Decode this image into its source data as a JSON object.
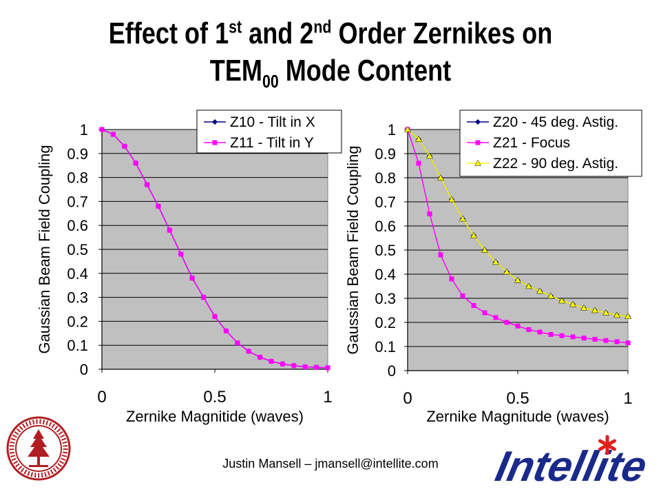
{
  "title": {
    "part1": "Effect of 1",
    "sup1": "st",
    "part2": " and 2",
    "sup2": "nd",
    "part3": " Order Zernikes on",
    "line2a": "TEM",
    "sub2": "00",
    "line2b": " Mode Content"
  },
  "footer": {
    "text": "Justin Mansell – jmansell@intellite.com"
  },
  "logo": {
    "text": "Intellite"
  },
  "colors": {
    "plot_bg": "#c0c0c0",
    "navy": "#000080",
    "magenta": "#ff00ff",
    "yellow": "#ffff00",
    "logo_blue": "#1a2a8a",
    "logo_red": "#e0201a",
    "seal_red": "#b01e23"
  },
  "chart_data": [
    {
      "type": "line",
      "xlabel": "Zernike Magnitide (waves)",
      "ylabel": "Gaussian Beam Field Coupling",
      "xlim": [
        0,
        1
      ],
      "ylim": [
        0,
        1
      ],
      "xticks": [
        "0",
        "0.5",
        "1"
      ],
      "yticks": [
        "0",
        "0.1",
        "0.2",
        "0.3",
        "0.4",
        "0.5",
        "0.6",
        "0.7",
        "0.8",
        "0.9",
        "1"
      ],
      "grid": "horizontal",
      "legend": "top-right",
      "x": [
        0,
        0.05,
        0.1,
        0.15,
        0.2,
        0.25,
        0.3,
        0.35,
        0.4,
        0.45,
        0.5,
        0.55,
        0.6,
        0.65,
        0.7,
        0.75,
        0.8,
        0.85,
        0.9,
        0.95,
        1
      ],
      "series": [
        {
          "name": "Z10 - Tilt in X",
          "marker": "diamond",
          "color": "#000080",
          "values": [
            1,
            0.98,
            0.93,
            0.86,
            0.77,
            0.68,
            0.58,
            0.48,
            0.38,
            0.3,
            0.22,
            0.16,
            0.11,
            0.075,
            0.05,
            0.033,
            0.022,
            0.015,
            0.01,
            0.008,
            0.006
          ]
        },
        {
          "name": "Z11 - Tilt in Y",
          "marker": "square",
          "color": "#ff00ff",
          "values": [
            1,
            0.98,
            0.93,
            0.86,
            0.77,
            0.68,
            0.58,
            0.48,
            0.38,
            0.3,
            0.22,
            0.16,
            0.11,
            0.075,
            0.05,
            0.033,
            0.022,
            0.015,
            0.01,
            0.008,
            0.006
          ]
        }
      ]
    },
    {
      "type": "line",
      "xlabel": "Zernike Magnitude (waves)",
      "ylabel": "Gaussian Beam Field Coupling",
      "xlim": [
        0,
        1
      ],
      "ylim": [
        0,
        1
      ],
      "xticks": [
        "0",
        "0.5",
        "1"
      ],
      "yticks": [
        "0",
        "0.1",
        "0.2",
        "0.3",
        "0.4",
        "0.5",
        "0.6",
        "0.7",
        "0.8",
        "0.9",
        "1"
      ],
      "grid": "horizontal",
      "legend": "top-right",
      "x": [
        0,
        0.05,
        0.1,
        0.15,
        0.2,
        0.25,
        0.3,
        0.35,
        0.4,
        0.45,
        0.5,
        0.55,
        0.6,
        0.65,
        0.7,
        0.75,
        0.8,
        0.85,
        0.9,
        0.95,
        1
      ],
      "series": [
        {
          "name": "Z20 - 45 deg. Astig.",
          "marker": "diamond",
          "color": "#000080",
          "values": [
            1,
            0.96,
            0.89,
            0.8,
            0.71,
            0.63,
            0.56,
            0.5,
            0.45,
            0.41,
            0.375,
            0.35,
            0.33,
            0.31,
            0.29,
            0.275,
            0.26,
            0.25,
            0.24,
            0.23,
            0.225
          ]
        },
        {
          "name": "Z21 - Focus",
          "marker": "square",
          "color": "#ff00ff",
          "values": [
            1,
            0.86,
            0.65,
            0.48,
            0.38,
            0.31,
            0.27,
            0.24,
            0.22,
            0.2,
            0.185,
            0.17,
            0.16,
            0.15,
            0.145,
            0.14,
            0.135,
            0.13,
            0.125,
            0.12,
            0.115
          ]
        },
        {
          "name": "Z22 - 90 deg. Astig.",
          "marker": "triangle",
          "color": "#ffff00",
          "values": [
            1,
            0.96,
            0.89,
            0.8,
            0.71,
            0.63,
            0.56,
            0.5,
            0.45,
            0.41,
            0.375,
            0.35,
            0.33,
            0.31,
            0.29,
            0.275,
            0.26,
            0.25,
            0.24,
            0.23,
            0.225
          ]
        }
      ]
    }
  ]
}
